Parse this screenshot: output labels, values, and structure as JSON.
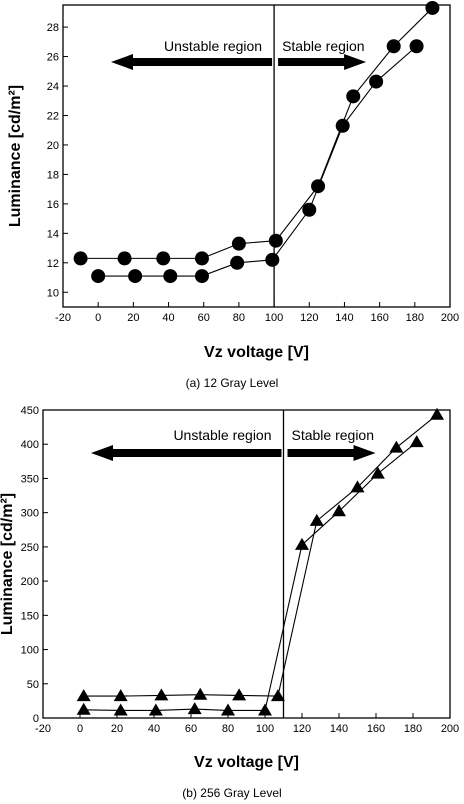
{
  "chart_data": [
    {
      "type": "line",
      "caption": "(a) 12 Gray Level",
      "xlabel": "Vz voltage [V]",
      "ylabel": "Luminance [cd/m²]",
      "xlim": [
        -20,
        200
      ],
      "ylim": [
        9,
        29.5
      ],
      "xticks": [
        -20,
        0,
        20,
        40,
        60,
        80,
        100,
        120,
        140,
        160,
        180,
        200
      ],
      "yticks": [
        10,
        12,
        14,
        16,
        18,
        20,
        22,
        24,
        26,
        28
      ],
      "marker": "circle",
      "divider_x": 100,
      "annotations": {
        "left": "Unstable region",
        "right": "Stable region"
      },
      "series": [
        {
          "x": [
            -10,
            15,
            37,
            59,
            80,
            101,
            125,
            145,
            168,
            190
          ],
          "y": [
            12.3,
            12.3,
            12.3,
            12.3,
            13.3,
            13.5,
            17.2,
            23.3,
            26.7,
            29.3
          ]
        },
        {
          "x": [
            0,
            21,
            41,
            59,
            79,
            99,
            120,
            139,
            158,
            181
          ],
          "y": [
            11.1,
            11.1,
            11.1,
            11.1,
            12.0,
            12.2,
            15.6,
            21.3,
            24.3,
            26.7
          ]
        }
      ]
    },
    {
      "type": "line",
      "caption": "(b) 256 Gray Level",
      "xlabel": "Vz voltage [V]",
      "ylabel": "Luminance [cd/m²]",
      "xlim": [
        -20,
        200
      ],
      "ylim": [
        0,
        450
      ],
      "xticks": [
        -20,
        0,
        20,
        40,
        60,
        80,
        100,
        120,
        140,
        160,
        180,
        200
      ],
      "yticks": [
        0,
        50,
        100,
        150,
        200,
        250,
        300,
        350,
        400,
        450
      ],
      "marker": "triangle",
      "divider_x": 110,
      "annotations": {
        "left": "Unstable region",
        "right": "Stable region"
      },
      "series": [
        {
          "x": [
            2,
            22,
            44,
            65,
            86,
            107,
            128,
            150,
            171,
            193
          ],
          "y": [
            32,
            32,
            33,
            34,
            33,
            32,
            288,
            337,
            395,
            443
          ]
        },
        {
          "x": [
            2,
            22,
            41,
            62,
            80,
            100,
            120,
            140,
            161,
            182
          ],
          "y": [
            12,
            11,
            11,
            13,
            11,
            11,
            253,
            302,
            357,
            403
          ]
        }
      ]
    }
  ]
}
